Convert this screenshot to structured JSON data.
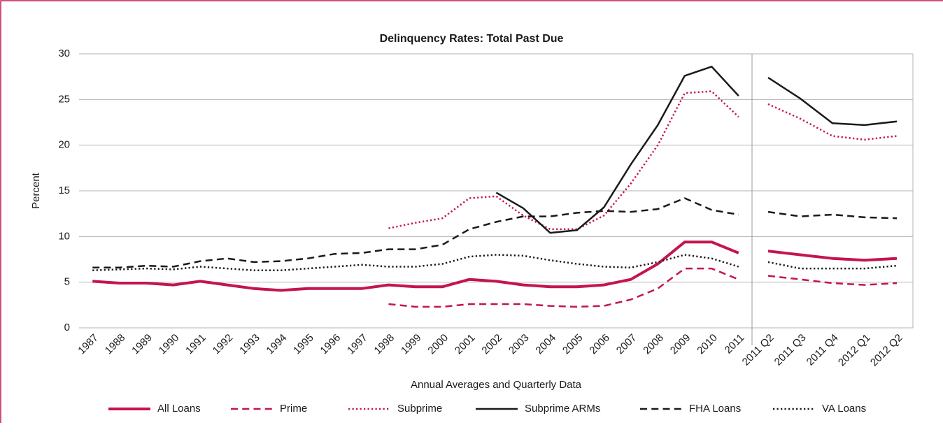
{
  "chart_data": {
    "type": "line",
    "title": "Delinquency Rates: Total Past Due",
    "ylabel": "Percent",
    "xlabel": "Annual Averages and Quarterly Data",
    "categories": [
      "1987",
      "1988",
      "1989",
      "1990",
      "1991",
      "1992",
      "1993",
      "1994",
      "1995",
      "1996",
      "1997",
      "1998",
      "1999",
      "2000",
      "2001",
      "2002",
      "2003",
      "2004",
      "2005",
      "2006",
      "2007",
      "2008",
      "2009",
      "2010",
      "2011",
      null,
      "2011 Q2",
      "2011 Q3",
      "2011 Q4",
      "2012 Q1",
      "2012 Q2"
    ],
    "ylim": [
      0,
      30
    ],
    "yticks": [
      0,
      5,
      10,
      15,
      20,
      25,
      30
    ],
    "grid": true,
    "legend": "bottom",
    "series": [
      {
        "name": "All Loans",
        "color": "#c4154e",
        "style": "solid",
        "linewidth": 4,
        "values": [
          5.1,
          4.9,
          4.9,
          4.7,
          5.1,
          4.7,
          4.3,
          4.1,
          4.3,
          4.3,
          4.3,
          4.7,
          4.5,
          4.5,
          5.3,
          5.1,
          4.7,
          4.5,
          4.5,
          4.7,
          5.3,
          7.0,
          9.4,
          9.4,
          8.2,
          null,
          8.4,
          8.0,
          7.6,
          7.4,
          7.6
        ]
      },
      {
        "name": "Prime",
        "color": "#c4154e",
        "style": "dashed",
        "linewidth": 2.5,
        "values": [
          null,
          null,
          null,
          null,
          null,
          null,
          null,
          null,
          null,
          null,
          null,
          2.6,
          2.3,
          2.3,
          2.6,
          2.6,
          2.6,
          2.4,
          2.3,
          2.4,
          3.1,
          4.3,
          6.5,
          6.5,
          5.3,
          null,
          5.7,
          5.3,
          4.9,
          4.7,
          4.9
        ]
      },
      {
        "name": "Subprime",
        "color": "#c4154e",
        "style": "dotted",
        "linewidth": 2.5,
        "values": [
          null,
          null,
          null,
          null,
          null,
          null,
          null,
          null,
          null,
          null,
          null,
          10.9,
          11.5,
          12.0,
          14.2,
          14.4,
          12.3,
          10.8,
          10.8,
          12.3,
          15.8,
          20.0,
          25.7,
          25.9,
          23.1,
          null,
          24.5,
          22.9,
          21.0,
          20.6,
          21.0
        ]
      },
      {
        "name": "Subprime ARMs",
        "color": "#1a1a1a",
        "style": "solid",
        "linewidth": 2.5,
        "values": [
          null,
          null,
          null,
          null,
          null,
          null,
          null,
          null,
          null,
          null,
          null,
          null,
          null,
          null,
          null,
          14.8,
          13.1,
          10.4,
          10.7,
          13.2,
          17.9,
          22.2,
          27.6,
          28.6,
          25.4,
          null,
          27.4,
          25.1,
          22.4,
          22.2,
          22.6
        ]
      },
      {
        "name": "FHA Loans",
        "color": "#1a1a1a",
        "style": "dashed",
        "linewidth": 2.5,
        "values": [
          6.6,
          6.6,
          6.8,
          6.7,
          7.3,
          7.6,
          7.2,
          7.3,
          7.6,
          8.1,
          8.2,
          8.6,
          8.6,
          9.1,
          10.8,
          11.6,
          12.2,
          12.2,
          12.6,
          12.8,
          12.7,
          13.0,
          14.2,
          12.9,
          12.4,
          null,
          12.7,
          12.2,
          12.4,
          12.1,
          12.0
        ]
      },
      {
        "name": "VA Loans",
        "color": "#1a1a1a",
        "style": "dotted",
        "linewidth": 2.5,
        "values": [
          6.3,
          6.4,
          6.5,
          6.4,
          6.7,
          6.5,
          6.3,
          6.3,
          6.5,
          6.7,
          6.9,
          6.7,
          6.7,
          7.0,
          7.8,
          8.0,
          7.9,
          7.4,
          7.0,
          6.7,
          6.6,
          7.2,
          8.0,
          7.6,
          6.7,
          null,
          7.2,
          6.5,
          6.5,
          6.5,
          6.8
        ]
      }
    ]
  }
}
